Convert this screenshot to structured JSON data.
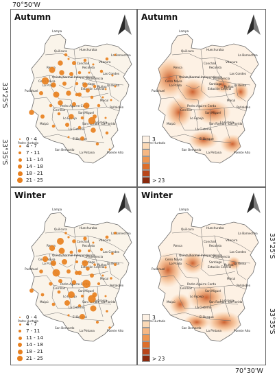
{
  "coords": {
    "top_left_lon": "70°50'W",
    "left_lat_top": "33°25'S",
    "left_lat_bottom": "33°35'S",
    "right_lat_top": "33°25'S",
    "right_lat_bottom": "33°35'S",
    "bottom_lon": "70°30'W"
  },
  "panels": [
    {
      "title": "Autumn",
      "kind": "points"
    },
    {
      "title": "Autumn",
      "kind": "surface"
    },
    {
      "title": "Winter",
      "kind": "points"
    },
    {
      "title": "Winter",
      "kind": "surface"
    }
  ],
  "legend_points": [
    "0 - 4",
    "4 - 7",
    "7 - 11",
    "11 - 14",
    "14 - 18",
    "18 - 21",
    "21 - 25"
  ],
  "legend_surface": {
    "low": "3",
    "high": "> 23",
    "colors": [
      "#fdf1e4",
      "#fbd9b6",
      "#f6b783",
      "#ee9550",
      "#dd6e2a",
      "#b9461a",
      "#8a2a0e"
    ]
  },
  "places": [
    "Lampa",
    "Quilicura",
    "Huechuraba",
    "La Barnechea",
    "Vitacura",
    "Conchalí",
    "Renca",
    "Recoleta",
    "Las Condes",
    "Quinta Normal",
    "Independencia",
    "Providencia",
    "Cerro Navia",
    "Lo Prado",
    "Santiago",
    "Estación Central",
    "Ñuñoa",
    "La Reina",
    "Pudahuel",
    "Maipú",
    "Cerrillos",
    "Pedro Aguirre Cerda",
    "San Miguel",
    "Macul",
    "Peñalolén",
    "Lo Espejo",
    "La Cisterna",
    "San Ramón",
    "La Granja",
    "La Florida",
    "El Bosque",
    "Padre Hurtado",
    "San Bernardo",
    "La Pintana",
    "Puente Alto"
  ],
  "colors": {
    "point": "#e8801e",
    "boundary": "#6a6a6a",
    "land": "#faf4ea"
  }
}
